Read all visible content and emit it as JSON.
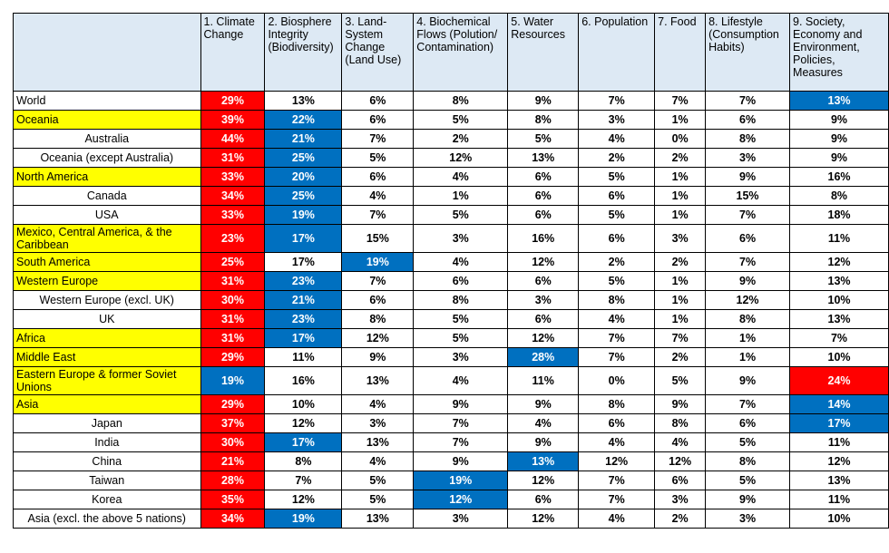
{
  "headers": [
    "",
    "1. Climate Change",
    "2. Biosphere Integrity (Biodiversity)",
    "3. Land-System Change (Land Use)",
    "4. Biochemical Flows (Polution/ Contamination)",
    "5. Water Resources",
    "6. Population",
    "7. Food",
    "8. Lifestyle (Consumption Habits)",
    "9. Society, Economy and Environment, Policies, Measures"
  ],
  "rows": [
    {
      "region": "World",
      "style": "world",
      "values": [
        "29%",
        "13%",
        "6%",
        "8%",
        "9%",
        "7%",
        "7%",
        "7%",
        "13%"
      ],
      "hl": [
        "red",
        "",
        "",
        "",
        "",
        "",
        "",
        "",
        "blue"
      ]
    },
    {
      "region": "Oceania",
      "style": "yellow",
      "values": [
        "39%",
        "22%",
        "6%",
        "5%",
        "8%",
        "3%",
        "1%",
        "6%",
        "9%"
      ],
      "hl": [
        "red",
        "blue",
        "",
        "",
        "",
        "",
        "",
        "",
        ""
      ]
    },
    {
      "region": "Australia",
      "style": "indent",
      "values": [
        "44%",
        "21%",
        "7%",
        "2%",
        "5%",
        "4%",
        "0%",
        "8%",
        "9%"
      ],
      "hl": [
        "red",
        "blue",
        "",
        "",
        "",
        "",
        "",
        "",
        ""
      ]
    },
    {
      "region": "Oceania (except Australia)",
      "style": "indent",
      "values": [
        "31%",
        "25%",
        "5%",
        "12%",
        "13%",
        "2%",
        "2%",
        "3%",
        "9%"
      ],
      "hl": [
        "red",
        "blue",
        "",
        "",
        "",
        "",
        "",
        "",
        ""
      ]
    },
    {
      "region": "North America",
      "style": "yellow",
      "values": [
        "33%",
        "20%",
        "6%",
        "4%",
        "6%",
        "5%",
        "1%",
        "9%",
        "16%"
      ],
      "hl": [
        "red",
        "blue",
        "",
        "",
        "",
        "",
        "",
        "",
        ""
      ]
    },
    {
      "region": "Canada",
      "style": "indent",
      "values": [
        "34%",
        "25%",
        "4%",
        "1%",
        "6%",
        "6%",
        "1%",
        "15%",
        "8%"
      ],
      "hl": [
        "red",
        "blue",
        "",
        "",
        "",
        "",
        "",
        "",
        ""
      ]
    },
    {
      "region": "USA",
      "style": "indent",
      "values": [
        "33%",
        "19%",
        "7%",
        "5%",
        "6%",
        "5%",
        "1%",
        "7%",
        "18%"
      ],
      "hl": [
        "red",
        "blue",
        "",
        "",
        "",
        "",
        "",
        "",
        ""
      ]
    },
    {
      "region": "Mexico, Central America, & the Caribbean",
      "style": "yellow",
      "tall": true,
      "values": [
        "23%",
        "17%",
        "15%",
        "3%",
        "16%",
        "6%",
        "3%",
        "6%",
        "11%"
      ],
      "hl": [
        "red",
        "blue",
        "",
        "",
        "",
        "",
        "",
        "",
        ""
      ]
    },
    {
      "region": "South America",
      "style": "yellow",
      "values": [
        "25%",
        "17%",
        "19%",
        "4%",
        "12%",
        "2%",
        "2%",
        "7%",
        "12%"
      ],
      "hl": [
        "red",
        "",
        "blue",
        "",
        "",
        "",
        "",
        "",
        ""
      ]
    },
    {
      "region": "Western Europe",
      "style": "yellow",
      "values": [
        "31%",
        "23%",
        "7%",
        "6%",
        "6%",
        "5%",
        "1%",
        "9%",
        "13%"
      ],
      "hl": [
        "red",
        "blue",
        "",
        "",
        "",
        "",
        "",
        "",
        ""
      ]
    },
    {
      "region": "Western Europe (excl. UK)",
      "style": "indent",
      "values": [
        "30%",
        "21%",
        "6%",
        "8%",
        "3%",
        "8%",
        "1%",
        "12%",
        "10%"
      ],
      "hl": [
        "red",
        "blue",
        "",
        "",
        "",
        "",
        "",
        "",
        ""
      ]
    },
    {
      "region": "UK",
      "style": "indent",
      "values": [
        "31%",
        "23%",
        "8%",
        "5%",
        "6%",
        "4%",
        "1%",
        "8%",
        "13%"
      ],
      "hl": [
        "red",
        "blue",
        "",
        "",
        "",
        "",
        "",
        "",
        ""
      ]
    },
    {
      "region": "Africa",
      "style": "yellow",
      "values": [
        "31%",
        "17%",
        "12%",
        "5%",
        "12%",
        "7%",
        "7%",
        "1%",
        "7%"
      ],
      "hl": [
        "red",
        "blue",
        "",
        "",
        "",
        "",
        "",
        "",
        ""
      ]
    },
    {
      "region": "Middle East",
      "style": "yellow",
      "values": [
        "29%",
        "11%",
        "9%",
        "3%",
        "28%",
        "7%",
        "2%",
        "1%",
        "10%"
      ],
      "hl": [
        "red",
        "",
        "",
        "",
        "blue",
        "",
        "",
        "",
        ""
      ]
    },
    {
      "region": "Eastern Europe & former Soviet Unions",
      "style": "yellow",
      "tall": true,
      "values": [
        "19%",
        "16%",
        "13%",
        "4%",
        "11%",
        "0%",
        "5%",
        "9%",
        "24%"
      ],
      "hl": [
        "blue",
        "",
        "",
        "",
        "",
        "",
        "",
        "",
        "red"
      ]
    },
    {
      "region": "Asia",
      "style": "yellow",
      "values": [
        "29%",
        "10%",
        "4%",
        "9%",
        "9%",
        "8%",
        "9%",
        "7%",
        "14%"
      ],
      "hl": [
        "red",
        "",
        "",
        "",
        "",
        "",
        "",
        "",
        "blue"
      ]
    },
    {
      "region": "Japan",
      "style": "indent",
      "values": [
        "37%",
        "12%",
        "3%",
        "7%",
        "4%",
        "6%",
        "8%",
        "6%",
        "17%"
      ],
      "hl": [
        "red",
        "",
        "",
        "",
        "",
        "",
        "",
        "",
        "blue"
      ]
    },
    {
      "region": "India",
      "style": "indent",
      "values": [
        "30%",
        "17%",
        "13%",
        "7%",
        "9%",
        "4%",
        "4%",
        "5%",
        "11%"
      ],
      "hl": [
        "red",
        "blue",
        "",
        "",
        "",
        "",
        "",
        "",
        ""
      ]
    },
    {
      "region": "China",
      "style": "indent",
      "values": [
        "21%",
        "8%",
        "4%",
        "9%",
        "13%",
        "12%",
        "12%",
        "8%",
        "12%"
      ],
      "hl": [
        "red",
        "",
        "",
        "",
        "blue",
        "",
        "",
        "",
        ""
      ]
    },
    {
      "region": "Taiwan",
      "style": "indent",
      "values": [
        "28%",
        "7%",
        "5%",
        "19%",
        "12%",
        "7%",
        "6%",
        "5%",
        "13%"
      ],
      "hl": [
        "red",
        "",
        "",
        "blue",
        "",
        "",
        "",
        "",
        ""
      ]
    },
    {
      "region": "Korea",
      "style": "indent",
      "values": [
        "35%",
        "12%",
        "5%",
        "12%",
        "6%",
        "7%",
        "3%",
        "9%",
        "11%"
      ],
      "hl": [
        "red",
        "",
        "",
        "blue",
        "",
        "",
        "",
        "",
        ""
      ]
    },
    {
      "region": "Asia (excl. the above 5 nations)",
      "style": "indent",
      "values": [
        "34%",
        "19%",
        "13%",
        "3%",
        "12%",
        "4%",
        "2%",
        "3%",
        "10%"
      ],
      "hl": [
        "red",
        "blue",
        "",
        "",
        "",
        "",
        "",
        "",
        ""
      ]
    }
  ]
}
